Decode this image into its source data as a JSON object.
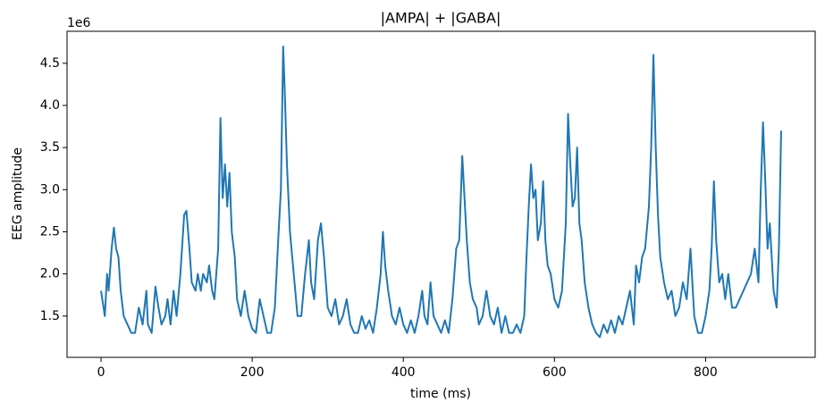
{
  "chart_data": {
    "type": "line",
    "title": "|AMPA| + |GABA|",
    "x_label": "time (ms)",
    "y_label": "EEG amplitude",
    "y_offset_label": "1e6",
    "xlim": [
      -45,
      945
    ],
    "ylim": [
      1.01,
      4.88
    ],
    "xticks": [
      0,
      200,
      400,
      600,
      800
    ],
    "yticks": [
      1.5,
      {
        "value": 2,
        "label": "2.0"
      },
      2.5,
      {
        "value": 3,
        "label": "3.0"
      },
      3.5,
      {
        "value": 4,
        "label": "4.0"
      },
      4.5
    ],
    "x": [
      0,
      5,
      8,
      10,
      14,
      17,
      20,
      23,
      26,
      30,
      35,
      40,
      45,
      50,
      55,
      60,
      62,
      67,
      72,
      76,
      80,
      85,
      88,
      92,
      96,
      100,
      105,
      110,
      113,
      117,
      120,
      125,
      128,
      132,
      135,
      140,
      143,
      147,
      150,
      155,
      158,
      161,
      164,
      167,
      170,
      173,
      177,
      180,
      185,
      190,
      195,
      200,
      205,
      210,
      215,
      220,
      225,
      230,
      235,
      238,
      241,
      243,
      246,
      250,
      255,
      260,
      265,
      270,
      275,
      278,
      282,
      287,
      291,
      295,
      300,
      305,
      310,
      315,
      320,
      325,
      330,
      335,
      340,
      345,
      350,
      355,
      360,
      365,
      370,
      373,
      376,
      380,
      385,
      390,
      395,
      400,
      405,
      410,
      415,
      420,
      425,
      428,
      432,
      436,
      440,
      445,
      450,
      455,
      460,
      465,
      470,
      474,
      478,
      481,
      484,
      488,
      492,
      497,
      500,
      505,
      510,
      515,
      520,
      525,
      530,
      535,
      540,
      545,
      550,
      555,
      560,
      563,
      566,
      569,
      572,
      575,
      578,
      582,
      585,
      588,
      591,
      595,
      600,
      605,
      610,
      615,
      618,
      621,
      624,
      627,
      630,
      633,
      636,
      640,
      645,
      650,
      655,
      660,
      665,
      670,
      675,
      680,
      685,
      690,
      695,
      700,
      705,
      708,
      712,
      716,
      720,
      725,
      728,
      731,
      734,
      737,
      740,
      745,
      750,
      755,
      760,
      765,
      770,
      775,
      780,
      785,
      790,
      795,
      800,
      805,
      808,
      811,
      814,
      818,
      822,
      826,
      830,
      835,
      840,
      845,
      850,
      855,
      860,
      865,
      870,
      873,
      876,
      879,
      882,
      885,
      890,
      894,
      897,
      900
    ],
    "series": [
      {
        "name": "|AMPA| + |GABA|",
        "color": "#1f77b4",
        "values": [
          1.8,
          1.5,
          2.0,
          1.8,
          2.3,
          2.55,
          2.3,
          2.2,
          1.8,
          1.5,
          1.4,
          1.3,
          1.3,
          1.6,
          1.4,
          1.8,
          1.4,
          1.3,
          1.85,
          1.6,
          1.4,
          1.5,
          1.7,
          1.4,
          1.8,
          1.5,
          2.0,
          2.7,
          2.75,
          2.3,
          1.9,
          1.8,
          2.0,
          1.8,
          2.0,
          1.9,
          2.1,
          1.8,
          1.7,
          2.3,
          3.85,
          2.9,
          3.3,
          2.8,
          3.2,
          2.5,
          2.2,
          1.7,
          1.5,
          1.8,
          1.5,
          1.35,
          1.3,
          1.7,
          1.5,
          1.3,
          1.3,
          1.6,
          2.5,
          3.0,
          4.7,
          4.2,
          3.3,
          2.5,
          2.0,
          1.5,
          1.5,
          2.0,
          2.4,
          1.9,
          1.7,
          2.4,
          2.6,
          2.2,
          1.6,
          1.5,
          1.7,
          1.4,
          1.5,
          1.7,
          1.4,
          1.3,
          1.3,
          1.5,
          1.35,
          1.45,
          1.3,
          1.6,
          2.0,
          2.5,
          2.1,
          1.8,
          1.5,
          1.4,
          1.6,
          1.4,
          1.3,
          1.45,
          1.3,
          1.5,
          1.8,
          1.5,
          1.4,
          1.9,
          1.5,
          1.4,
          1.3,
          1.45,
          1.3,
          1.7,
          2.3,
          2.4,
          3.4,
          2.9,
          2.4,
          1.9,
          1.7,
          1.6,
          1.4,
          1.5,
          1.8,
          1.5,
          1.4,
          1.6,
          1.3,
          1.5,
          1.3,
          1.3,
          1.4,
          1.3,
          1.5,
          2.2,
          2.8,
          3.3,
          2.9,
          3.0,
          2.4,
          2.6,
          3.1,
          2.4,
          2.1,
          2.0,
          1.7,
          1.6,
          1.8,
          2.6,
          3.9,
          3.3,
          2.8,
          2.9,
          3.5,
          2.6,
          2.4,
          1.9,
          1.6,
          1.4,
          1.3,
          1.25,
          1.4,
          1.3,
          1.45,
          1.3,
          1.5,
          1.4,
          1.6,
          1.8,
          1.4,
          2.1,
          1.9,
          2.2,
          2.3,
          2.8,
          3.5,
          4.6,
          3.5,
          2.7,
          2.2,
          1.9,
          1.7,
          1.8,
          1.5,
          1.6,
          1.9,
          1.7,
          2.3,
          1.5,
          1.3,
          1.3,
          1.5,
          1.8,
          2.3,
          3.1,
          2.4,
          1.9,
          2.0,
          1.7,
          2.0,
          1.6,
          1.6,
          1.7,
          1.8,
          1.9,
          2.0,
          2.3,
          1.9,
          3.0,
          3.8,
          3.1,
          2.3,
          2.6,
          1.8,
          1.6,
          2.3,
          3.7
        ]
      }
    ]
  }
}
